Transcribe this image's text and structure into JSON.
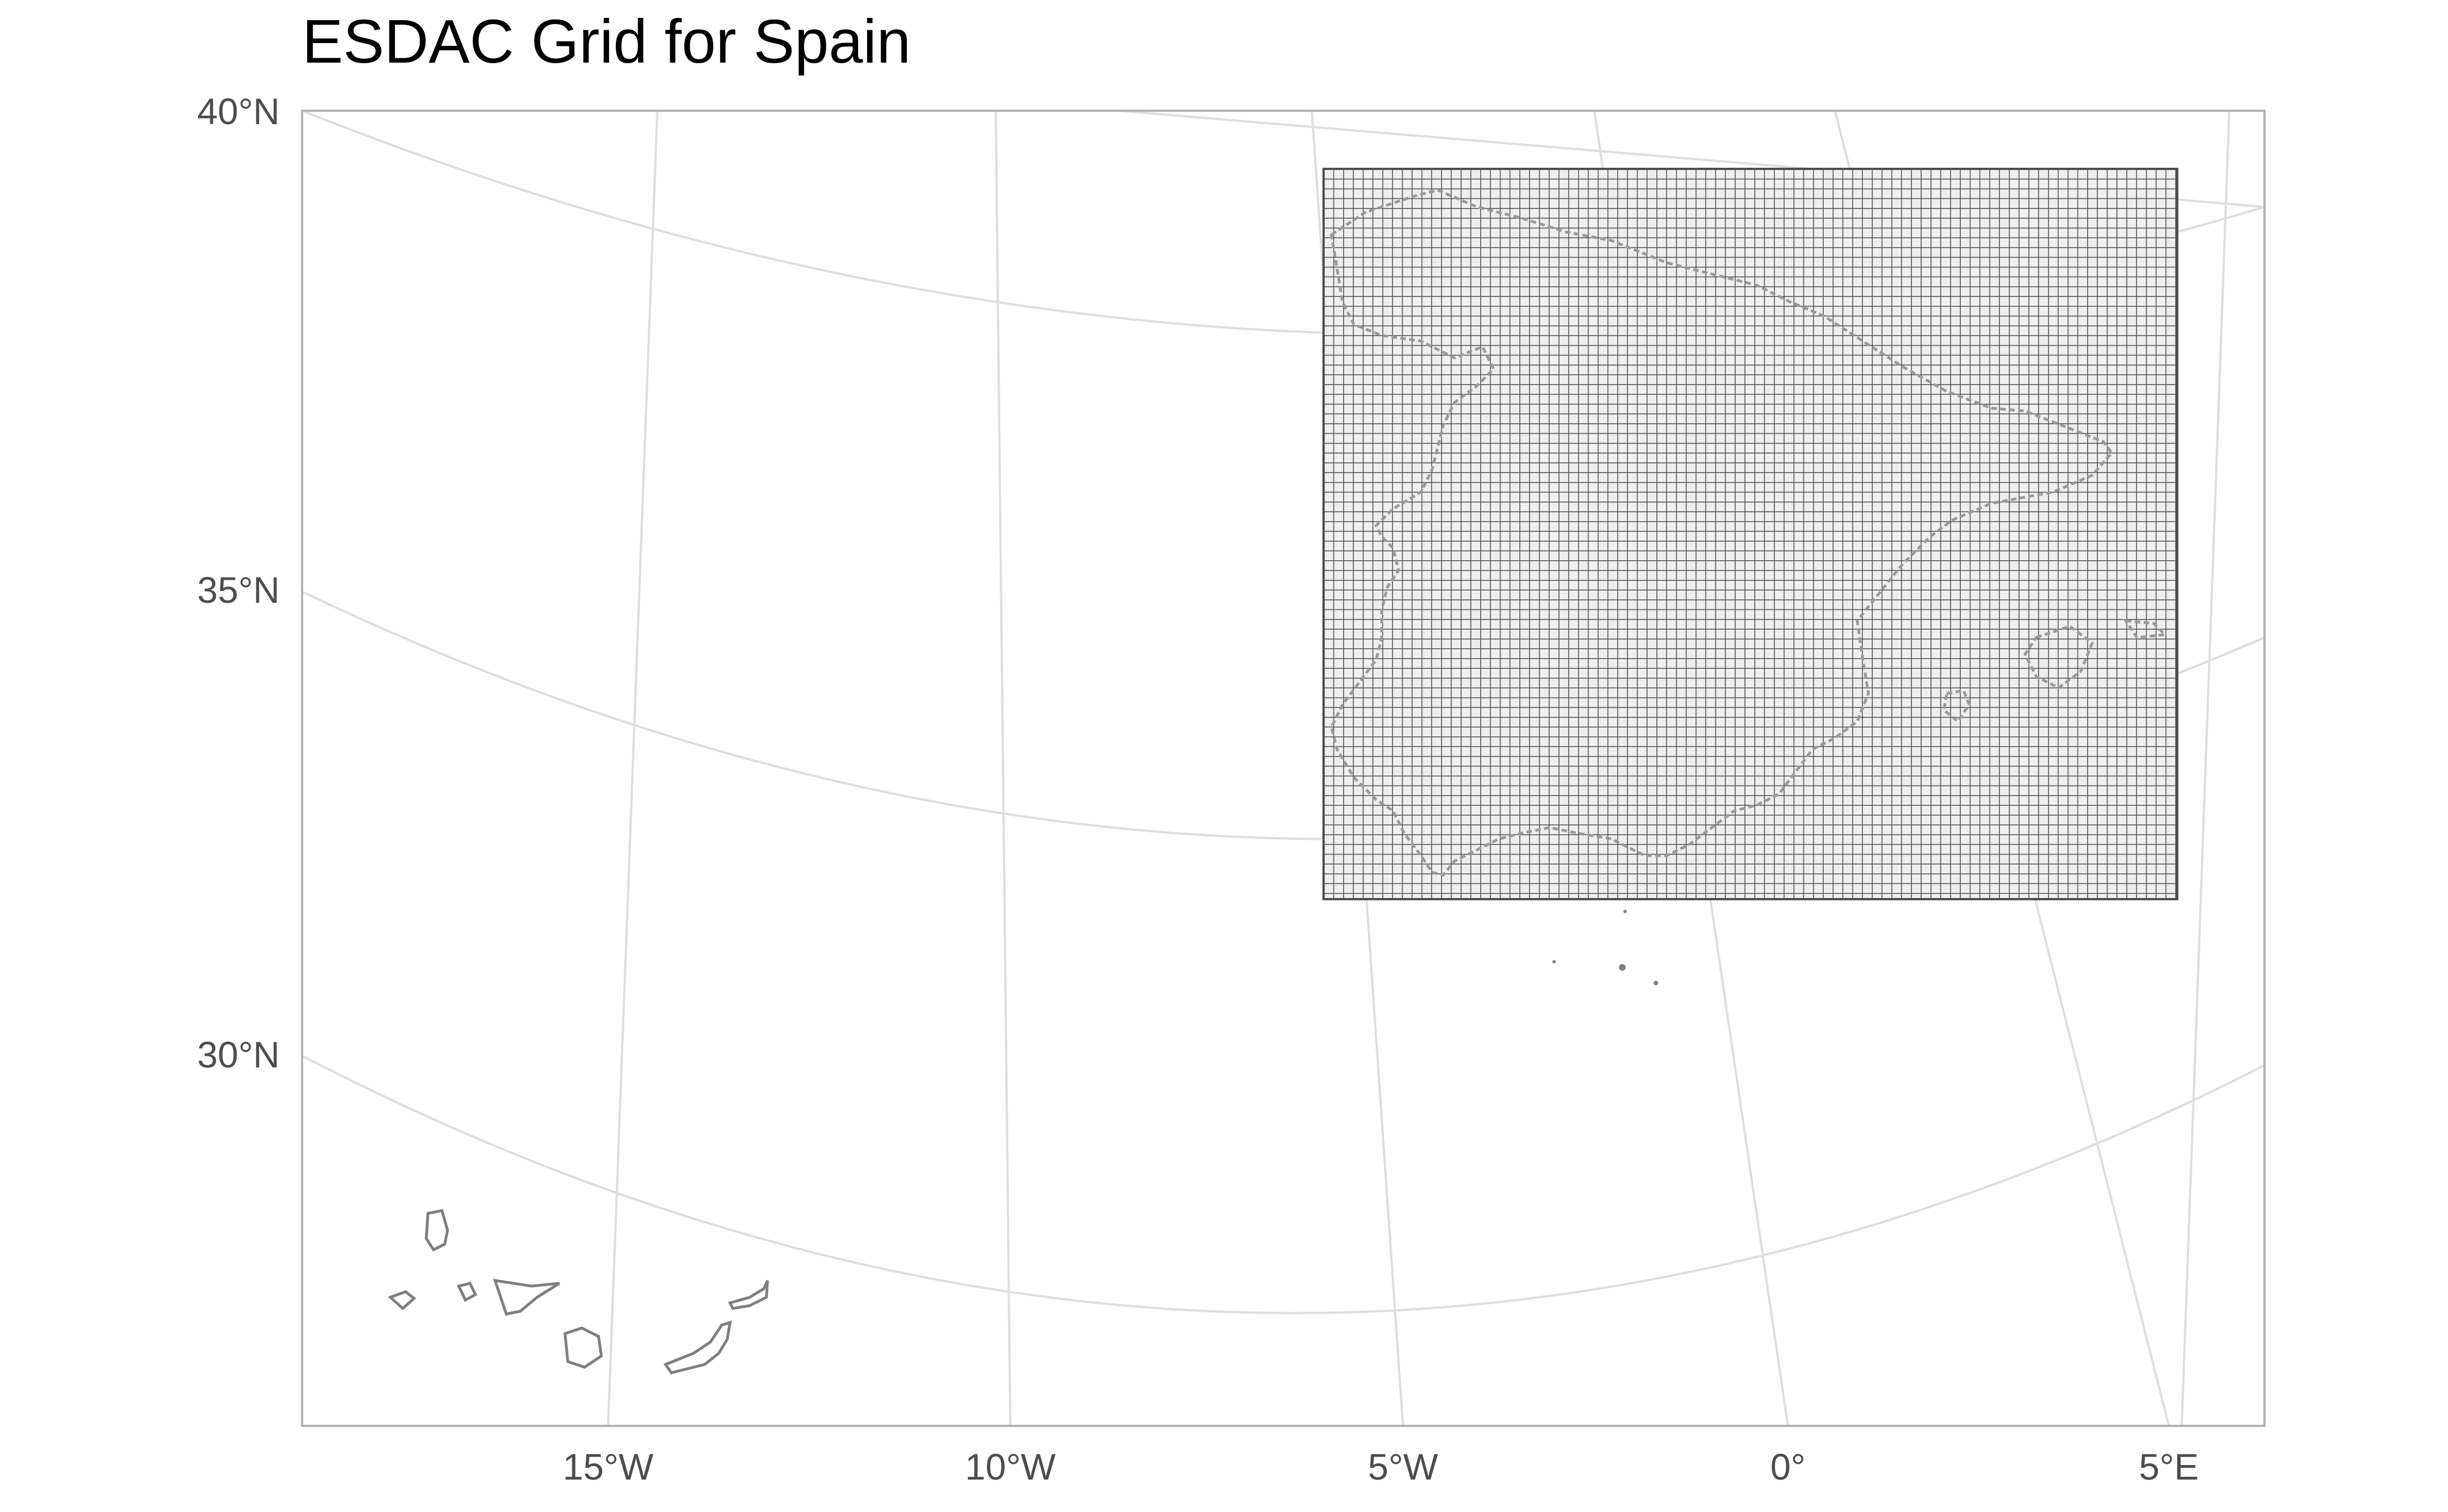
{
  "title": "ESDAC Grid for Spain",
  "colors": {
    "background": "#ffffff",
    "graticule": "#dedede",
    "panel_border": "#b3b3b3",
    "outline": "#7f7f7f",
    "grid_fill": "#eeeeee",
    "grid_line": "#4d4d4d",
    "axis_text": "#4d4d4d"
  },
  "axes": {
    "y_labels": [
      "40°N",
      "35°N",
      "30°N"
    ],
    "x_labels": [
      "15°W",
      "10°W",
      "5°W",
      "0°",
      "5°E"
    ]
  },
  "map": {
    "graticule": true,
    "layers": [
      "Spain outline",
      "Canary Islands outline",
      "ESDAC raster grid over mainland Spain"
    ]
  }
}
